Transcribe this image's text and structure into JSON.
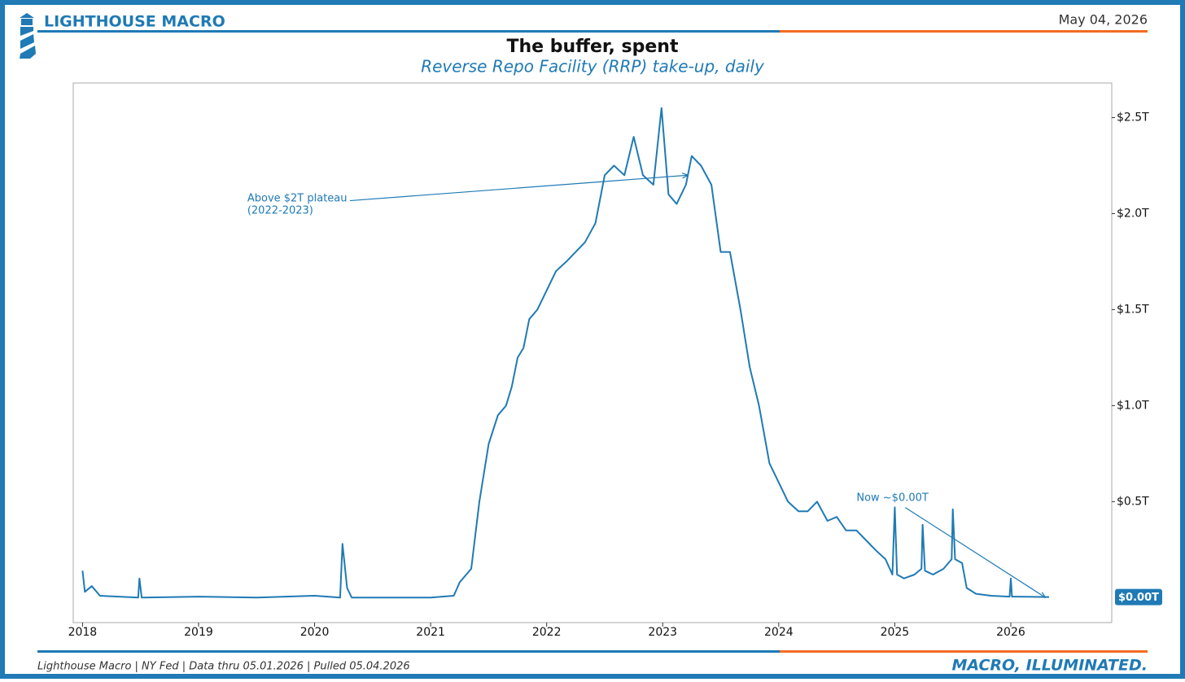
{
  "header": {
    "brand": "LIGHTHOUSE MACRO",
    "date": "May 04, 2026"
  },
  "footer": {
    "source": "Lighthouse Macro | NY Fed | Data thru 05.01.2026 | Pulled 05.04.2026",
    "tagline": "MACRO, ILLUMINATED."
  },
  "chart_data": {
    "type": "line",
    "title": "The buffer, spent",
    "subtitle": "Reverse Repo Facility (RRP) take-up, daily",
    "color": "#1f7ab5",
    "x": [
      2018.0,
      2018.02,
      2018.08,
      2018.15,
      2018.48,
      2018.49,
      2018.51,
      2019.0,
      2019.5,
      2020.0,
      2020.22,
      2020.24,
      2020.28,
      2020.32,
      2021.0,
      2021.2,
      2021.25,
      2021.35,
      2021.42,
      2021.5,
      2021.58,
      2021.65,
      2021.7,
      2021.75,
      2021.8,
      2021.85,
      2021.92,
      2022.0,
      2022.08,
      2022.17,
      2022.25,
      2022.33,
      2022.42,
      2022.5,
      2022.58,
      2022.67,
      2022.75,
      2022.83,
      2022.92,
      2022.99,
      2023.05,
      2023.12,
      2023.2,
      2023.25,
      2023.33,
      2023.42,
      2023.5,
      2023.58,
      2023.67,
      2023.75,
      2023.83,
      2023.92,
      2024.0,
      2024.08,
      2024.17,
      2024.25,
      2024.33,
      2024.42,
      2024.5,
      2024.58,
      2024.67,
      2024.75,
      2024.83,
      2024.92,
      2024.98,
      2025.0,
      2025.02,
      2025.08,
      2025.17,
      2025.23,
      2025.24,
      2025.26,
      2025.33,
      2025.42,
      2025.49,
      2025.5,
      2025.52,
      2025.58,
      2025.62,
      2025.7,
      2025.83,
      2025.99,
      2026.0,
      2026.01,
      2026.05,
      2026.33
    ],
    "values": [
      0.14,
      0.03,
      0.06,
      0.01,
      0.0,
      0.1,
      0.0,
      0.005,
      0.0,
      0.01,
      0.0,
      0.28,
      0.05,
      0.0,
      0.0,
      0.01,
      0.08,
      0.15,
      0.5,
      0.8,
      0.95,
      1.0,
      1.1,
      1.25,
      1.3,
      1.45,
      1.5,
      1.6,
      1.7,
      1.75,
      1.8,
      1.85,
      1.95,
      2.2,
      2.25,
      2.2,
      2.4,
      2.2,
      2.15,
      2.55,
      2.1,
      2.05,
      2.15,
      2.3,
      2.25,
      2.15,
      1.8,
      1.8,
      1.5,
      1.2,
      1.0,
      0.7,
      0.6,
      0.5,
      0.45,
      0.45,
      0.5,
      0.4,
      0.42,
      0.35,
      0.35,
      0.3,
      0.25,
      0.2,
      0.12,
      0.47,
      0.12,
      0.1,
      0.12,
      0.15,
      0.38,
      0.14,
      0.12,
      0.15,
      0.2,
      0.46,
      0.2,
      0.18,
      0.05,
      0.02,
      0.01,
      0.005,
      0.1,
      0.005,
      0.005,
      0.003
    ],
    "end_label": "$0.00T",
    "xlim": [
      2017.92,
      2026.87
    ],
    "xticks": [
      2018,
      2019,
      2020,
      2021,
      2022,
      2023,
      2024,
      2025,
      2026
    ],
    "ylim": [
      -0.13,
      2.68
    ],
    "yticks": [
      {
        "value": 0.5,
        "label": "$0.5T"
      },
      {
        "value": 1.0,
        "label": "$1.0T"
      },
      {
        "value": 1.5,
        "label": "$1.5T"
      },
      {
        "value": 2.0,
        "label": "$2.0T"
      },
      {
        "value": 2.5,
        "label": "$2.5T"
      }
    ],
    "annotations": [
      {
        "lines": [
          "Above $2T plateau",
          "(2022-2023)"
        ],
        "xytext": [
          2019.42,
          2.08
        ],
        "xy": [
          2023.22,
          2.2
        ]
      },
      {
        "lines": [
          "Now ~$0.00T"
        ],
        "xytext": [
          2024.67,
          0.52
        ],
        "xy": [
          2026.3,
          0.0
        ]
      }
    ]
  }
}
